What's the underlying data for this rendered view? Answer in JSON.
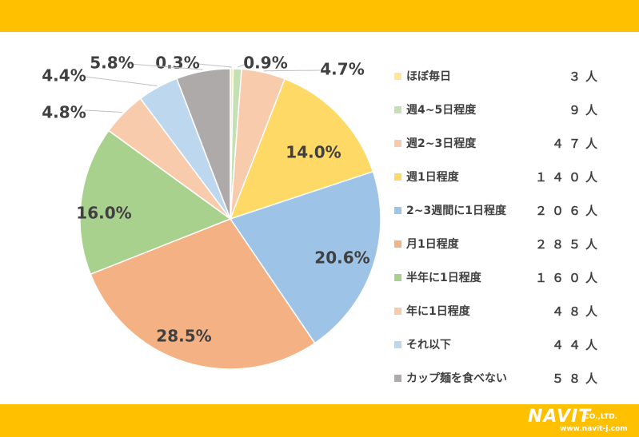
{
  "chart_data": {
    "type": "pie",
    "categories": [
      "ほぼ毎日",
      "週4~5日程度",
      "週2~3日程度",
      "週1日程度",
      "2~3週間に1日程度",
      "月1日程度",
      "半年に1日程度",
      "年に1日程度",
      "それ以下",
      "カップ麺を食べない"
    ],
    "counts": [
      "３人",
      "９人",
      "４７人",
      "１４０人",
      "２０６人",
      "２８５人",
      "１６０人",
      "４８人",
      "４４人",
      "５８人"
    ],
    "values": [
      0.3,
      0.9,
      4.7,
      14.0,
      20.6,
      28.5,
      16.0,
      4.8,
      4.4,
      5.8
    ],
    "value_labels": [
      "0.3%",
      "0.9%",
      "4.7%",
      "14.0%",
      "20.6%",
      "28.5%",
      "16.0%",
      "4.8%",
      "4.4%",
      "5.8%"
    ],
    "colors": [
      "#ffe699",
      "#c5e0b4",
      "#f8cbad",
      "#ffd966",
      "#9dc3e6",
      "#f4b183",
      "#a9d18e",
      "#f8cbad",
      "#bdd7ee",
      "#aeaaaa"
    ],
    "legend_position": "right"
  },
  "logo": {
    "name": "NAVIT",
    "company": "CO.,LTD.",
    "url": "www.navit-j.com"
  }
}
